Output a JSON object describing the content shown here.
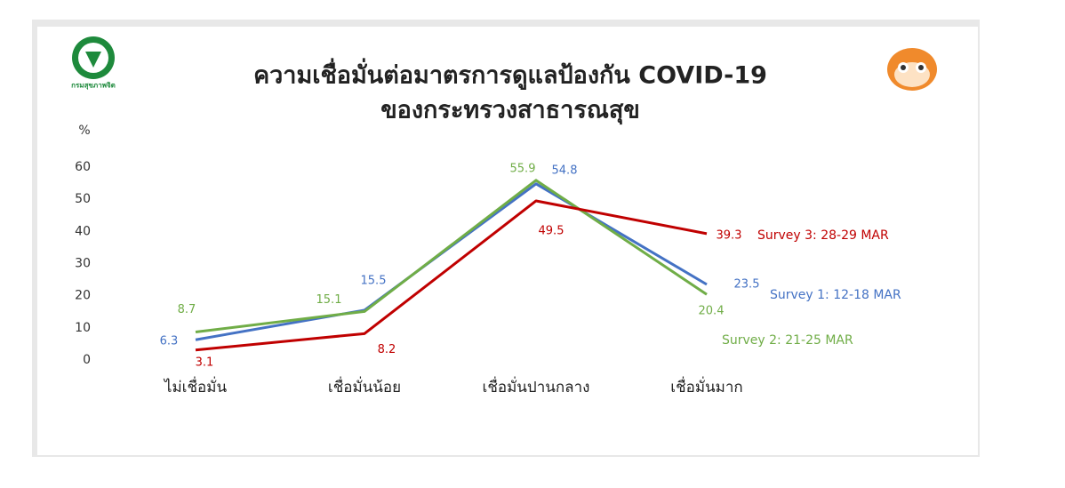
{
  "chart_data": {
    "type": "line",
    "title": "ความเชื่อมั่นต่อมาตรการดูแลป้องกัน COVID-19",
    "subtitle": "ของกระทรวงสาธารณสุข",
    "y_label": "%",
    "logo_text": "กรมสุขภาพจิต",
    "categories": [
      "ไม่เชื่อมั่น",
      "เชื่อมั่นน้อย",
      "เชื่อมั่นปานกลาง",
      "เชื่อมั่นมาก"
    ],
    "series": [
      {
        "name": "Survey 1: 12-18 MAR",
        "color": "#4472c4",
        "values": [
          6.3,
          15.5,
          54.8,
          23.5
        ]
      },
      {
        "name": "Survey 2: 21-25 MAR",
        "color": "#70ad47",
        "values": [
          8.7,
          15.1,
          55.9,
          20.4
        ]
      },
      {
        "name": "Survey 3: 28-29 MAR",
        "color": "#c00000",
        "values": [
          3.1,
          8.2,
          49.5,
          39.3
        ]
      }
    ],
    "ylim": [
      0,
      60
    ],
    "yticks": [
      0,
      10,
      20,
      30,
      40,
      50,
      60
    ],
    "grid": false
  }
}
